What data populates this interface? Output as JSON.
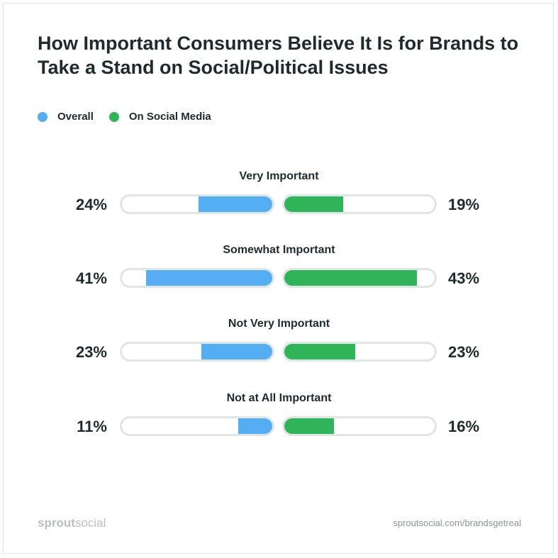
{
  "colors": {
    "overall": "#56aef2",
    "social": "#30b45a",
    "track": "#e1e5e7"
  },
  "footer": {
    "logo_strong": "sprout",
    "logo_light": "social",
    "url": "sproutsocial.com/brandsgetreal"
  },
  "chart_data": {
    "type": "bar",
    "title": "How Important Consumers Believe It Is for Brands to Take a Stand on Social/Political Issues",
    "legend": "top-left",
    "categories": [
      "Very Important",
      "Somewhat Important",
      "Not Very Important",
      "Not at All Important"
    ],
    "series": [
      {
        "name": "Overall",
        "values": [
          24,
          41,
          23,
          11
        ],
        "labels": [
          "24%",
          "41%",
          "23%",
          "11%"
        ]
      },
      {
        "name": "On Social Media",
        "values": [
          19,
          43,
          23,
          16
        ],
        "labels": [
          "19%",
          "43%",
          "23%",
          "16%"
        ]
      }
    ],
    "ylim": [
      0,
      100
    ]
  }
}
